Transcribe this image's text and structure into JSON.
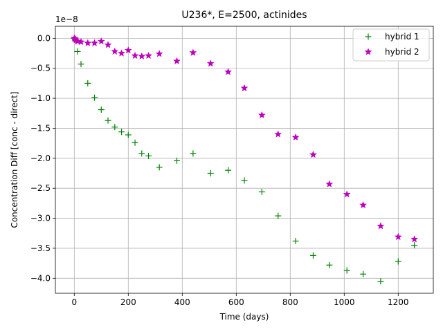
{
  "chart_data": {
    "type": "scatter",
    "title": "U236*, E=2500, actinides",
    "xlabel": "Time (days)",
    "ylabel": "Concentration Diff [conc - direct]",
    "offset_text": "1e−8",
    "xlim": [
      -70,
      1330
    ],
    "ylim": [
      -4.25,
      0.2
    ],
    "x_ticks": [
      0,
      200,
      400,
      600,
      800,
      1000,
      1200
    ],
    "x_tick_labels": [
      "0",
      "200",
      "400",
      "600",
      "800",
      "1000",
      "1200"
    ],
    "y_ticks": [
      0.0,
      -0.5,
      -1.0,
      -1.5,
      -2.0,
      -2.5,
      -3.0,
      -3.5,
      -4.0
    ],
    "y_tick_labels": [
      "0.0",
      "−0.5",
      "−1.0",
      "−1.5",
      "−2.0",
      "−2.5",
      "−3.0",
      "−3.5",
      "−4.0"
    ],
    "grid": true,
    "legend_position": "top-right",
    "series": [
      {
        "name": "hybrid 1",
        "marker": "plus",
        "color": "#008000",
        "x": [
          0,
          3,
          6,
          12,
          25,
          50,
          75,
          100,
          125,
          150,
          175,
          200,
          225,
          250,
          275,
          315,
          380,
          440,
          505,
          570,
          630,
          695,
          755,
          820,
          885,
          945,
          1010,
          1070,
          1135,
          1200,
          1260
        ],
        "y": [
          0.0,
          -0.02,
          -0.05,
          -0.22,
          -0.43,
          -0.75,
          -0.99,
          -1.19,
          -1.37,
          -1.48,
          -1.56,
          -1.61,
          -1.74,
          -1.92,
          -1.96,
          -2.15,
          -2.04,
          -1.92,
          -2.25,
          -2.2,
          -2.37,
          -2.56,
          -2.96,
          -3.38,
          -3.62,
          -3.78,
          -3.87,
          -3.93,
          -4.05,
          -3.72,
          -3.45
        ]
      },
      {
        "name": "hybrid 2",
        "marker": "star",
        "color": "#bf00bf",
        "x": [
          0,
          3,
          6,
          12,
          25,
          50,
          75,
          100,
          125,
          150,
          175,
          200,
          225,
          250,
          275,
          315,
          380,
          440,
          505,
          570,
          630,
          695,
          755,
          820,
          885,
          945,
          1010,
          1070,
          1135,
          1200,
          1260
        ],
        "y": [
          0.0,
          -0.01,
          -0.03,
          -0.05,
          -0.06,
          -0.08,
          -0.08,
          -0.05,
          -0.11,
          -0.22,
          -0.25,
          -0.2,
          -0.29,
          -0.3,
          -0.29,
          -0.26,
          -0.38,
          -0.24,
          -0.42,
          -0.56,
          -0.83,
          -1.28,
          -1.6,
          -1.65,
          -1.94,
          -2.43,
          -2.6,
          -2.78,
          -3.13,
          -3.31,
          -3.35
        ]
      }
    ]
  }
}
